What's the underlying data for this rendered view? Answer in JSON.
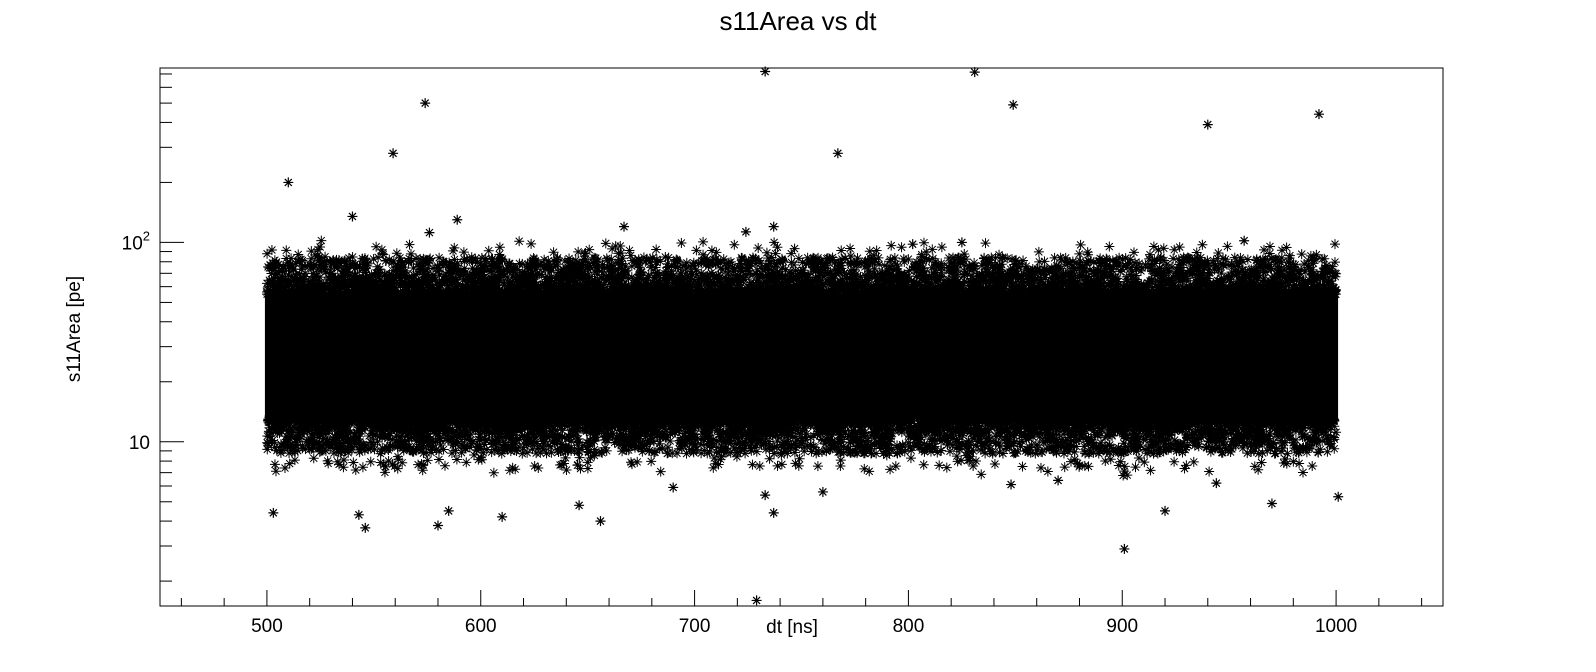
{
  "chart_data": {
    "type": "scatter",
    "title": "s11Area vs dt",
    "xlabel": "dt [ns]",
    "ylabel": "s11Area [pe]",
    "xlim": [
      450,
      1050
    ],
    "ylim": [
      1.5,
      750
    ],
    "ylog": true,
    "grid": false,
    "marker": "asterisk",
    "x_ticks": [
      "500",
      "600",
      "700",
      "800",
      "900",
      "1000"
    ],
    "x_tick_values": [
      500,
      600,
      700,
      800,
      900,
      1000
    ],
    "y_ticks": [
      {
        "value": 10,
        "base": "10",
        "exp": ""
      },
      {
        "value": 100,
        "base": "10",
        "exp": "2"
      }
    ],
    "dense_band": {
      "x_range": [
        500,
        1000
      ],
      "y_range": [
        10,
        70
      ],
      "y_core": [
        13,
        55
      ]
    },
    "outliers": [
      {
        "x": 510,
        "y": 200
      },
      {
        "x": 559,
        "y": 280
      },
      {
        "x": 574,
        "y": 500
      },
      {
        "x": 733,
        "y": 720
      },
      {
        "x": 767,
        "y": 280
      },
      {
        "x": 831,
        "y": 715
      },
      {
        "x": 849,
        "y": 490
      },
      {
        "x": 940,
        "y": 390
      },
      {
        "x": 992,
        "y": 440
      },
      {
        "x": 540,
        "y": 135
      },
      {
        "x": 589,
        "y": 130
      },
      {
        "x": 576,
        "y": 112
      },
      {
        "x": 667,
        "y": 120
      },
      {
        "x": 737,
        "y": 120
      },
      {
        "x": 724,
        "y": 113
      },
      {
        "x": 957,
        "y": 102
      },
      {
        "x": 802,
        "y": 98
      },
      {
        "x": 825,
        "y": 100
      },
      {
        "x": 503,
        "y": 4.4
      },
      {
        "x": 546,
        "y": 3.7
      },
      {
        "x": 543,
        "y": 4.3
      },
      {
        "x": 580,
        "y": 3.8
      },
      {
        "x": 585,
        "y": 4.5
      },
      {
        "x": 610,
        "y": 4.2
      },
      {
        "x": 646,
        "y": 4.8
      },
      {
        "x": 656,
        "y": 4.0
      },
      {
        "x": 737,
        "y": 4.4
      },
      {
        "x": 729,
        "y": 1.6
      },
      {
        "x": 901,
        "y": 2.9
      },
      {
        "x": 920,
        "y": 4.5
      },
      {
        "x": 970,
        "y": 4.9
      },
      {
        "x": 1001,
        "y": 5.3
      },
      {
        "x": 944,
        "y": 6.2
      },
      {
        "x": 848,
        "y": 6.1
      },
      {
        "x": 870,
        "y": 6.4
      },
      {
        "x": 733,
        "y": 5.4
      },
      {
        "x": 760,
        "y": 5.6
      },
      {
        "x": 690,
        "y": 5.9
      }
    ]
  }
}
